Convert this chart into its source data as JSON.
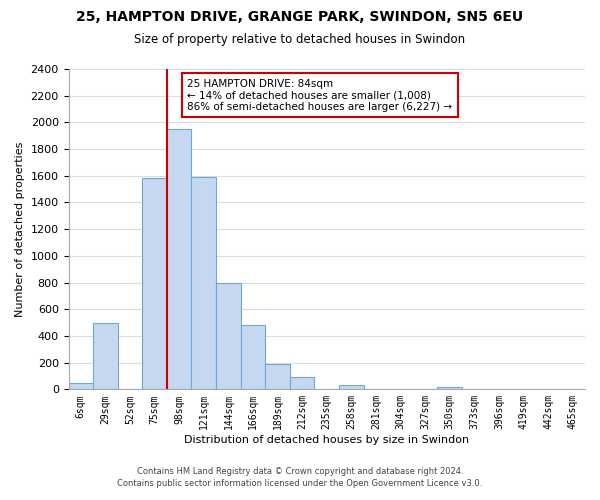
{
  "title_line1": "25, HAMPTON DRIVE, GRANGE PARK, SWINDON, SN5 6EU",
  "title_line2": "Size of property relative to detached houses in Swindon",
  "xlabel": "Distribution of detached houses by size in Swindon",
  "ylabel": "Number of detached properties",
  "bar_categories": [
    "6sqm",
    "29sqm",
    "52sqm",
    "75sqm",
    "98sqm",
    "121sqm",
    "144sqm",
    "166sqm",
    "189sqm",
    "212sqm",
    "235sqm",
    "258sqm",
    "281sqm",
    "304sqm",
    "327sqm",
    "350sqm",
    "373sqm",
    "396sqm",
    "419sqm",
    "442sqm",
    "465sqm"
  ],
  "bar_values": [
    50,
    500,
    0,
    1580,
    1950,
    1590,
    800,
    480,
    190,
    90,
    0,
    30,
    0,
    0,
    0,
    20,
    0,
    0,
    0,
    0,
    0
  ],
  "bar_color": "#c5d8f0",
  "bar_edge_color": "#6aaad4",
  "vline_color": "#cc0000",
  "annotation_title": "25 HAMPTON DRIVE: 84sqm",
  "annotation_line1": "← 14% of detached houses are smaller (1,008)",
  "annotation_line2": "86% of semi-detached houses are larger (6,227) →",
  "annotation_box_color": "#ffffff",
  "annotation_box_edge": "#cc0000",
  "ylim": [
    0,
    2400
  ],
  "yticks": [
    0,
    200,
    400,
    600,
    800,
    1000,
    1200,
    1400,
    1600,
    1800,
    2000,
    2200,
    2400
  ],
  "footer_line1": "Contains HM Land Registry data © Crown copyright and database right 2024.",
  "footer_line2": "Contains public sector information licensed under the Open Government Licence v3.0.",
  "background_color": "#ffffff",
  "grid_color": "#dddddd"
}
